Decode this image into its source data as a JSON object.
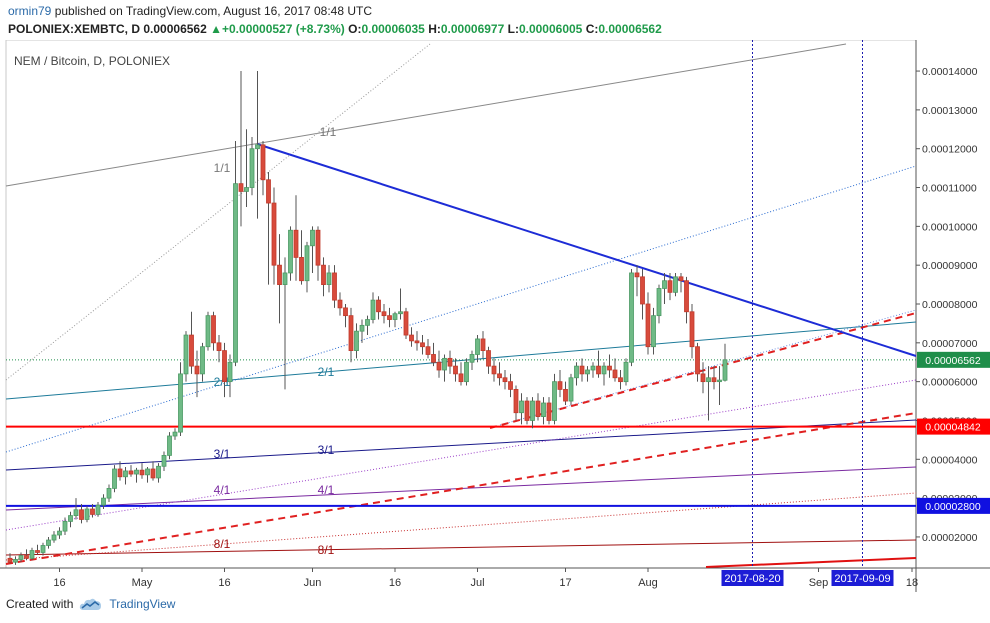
{
  "header": {
    "user": "ormin79",
    "published_text": "published on TradingView.com, August 16, 2017 08:48 UTC",
    "symbol": "POLONIEX:XEMBTC, D",
    "price": "0.00006562",
    "arrow": "▲",
    "change": "+0.00000527 (+8.73%)",
    "o_label": "O:",
    "o_value": "0.00006035",
    "h_label": "H:",
    "h_value": "0.00006977",
    "l_label": "L:",
    "l_value": "0.00006005",
    "c_label": "C:",
    "c_value": "0.00006562"
  },
  "chart_data": {
    "type": "candlestick",
    "title": "NEM / Bitcoin, D, POLONIEX",
    "ylim": [
      1.2e-05,
      0.000148
    ],
    "y_ticks": [
      "0.00014000",
      "0.00013000",
      "0.00012000",
      "0.00011000",
      "0.00010000",
      "0.00009000",
      "0.00008000",
      "0.00007000",
      "0.00006000",
      "0.00005000",
      "0.00004000",
      "0.00003000",
      "0.00002000"
    ],
    "x_ticks": [
      "16",
      "May",
      "16",
      "Jun",
      "16",
      "Jul",
      "17",
      "Aug",
      "2017-08-20",
      "Sep",
      "2017-09-09",
      "18"
    ],
    "price_labels": [
      {
        "text": "0.00006562",
        "value": 6.562e-05,
        "color": "#1f8e4a",
        "kind": "last"
      },
      {
        "text": "0.00004842",
        "value": 4.842e-05,
        "color": "#ff0000",
        "kind": "solid"
      },
      {
        "text": "0.00002800",
        "value": 2.8e-05,
        "color": "#1010e0",
        "kind": "solid"
      }
    ],
    "date_labels": [
      "2017-08-20",
      "2017-09-09"
    ],
    "fan_labels": [
      "1/1",
      "1/1",
      "2/1",
      "2/1",
      "3/1",
      "3/1",
      "4/1",
      "4/1",
      "8/1",
      "8/1"
    ],
    "candles": [
      {
        "d": "2017-04-07",
        "o": 1.45e-05,
        "h": 1.58e-05,
        "l": 1.32e-05,
        "c": 1.35e-05
      },
      {
        "d": "2017-04-08",
        "o": 1.35e-05,
        "h": 1.5e-05,
        "l": 1.28e-05,
        "c": 1.42e-05
      },
      {
        "d": "2017-04-09",
        "o": 1.42e-05,
        "h": 1.6e-05,
        "l": 1.35e-05,
        "c": 1.52e-05
      },
      {
        "d": "2017-04-10",
        "o": 1.52e-05,
        "h": 1.68e-05,
        "l": 1.4e-05,
        "c": 1.45e-05
      },
      {
        "d": "2017-04-11",
        "o": 1.45e-05,
        "h": 1.72e-05,
        "l": 1.4e-05,
        "c": 1.65e-05
      },
      {
        "d": "2017-04-12",
        "o": 1.65e-05,
        "h": 1.8e-05,
        "l": 1.55e-05,
        "c": 1.6e-05
      },
      {
        "d": "2017-04-13",
        "o": 1.6e-05,
        "h": 1.85e-05,
        "l": 1.52e-05,
        "c": 1.78e-05
      },
      {
        "d": "2017-04-14",
        "o": 1.78e-05,
        "h": 2e-05,
        "l": 1.7e-05,
        "c": 1.92e-05
      },
      {
        "d": "2017-04-15",
        "o": 1.92e-05,
        "h": 2.15e-05,
        "l": 1.85e-05,
        "c": 2.05e-05
      },
      {
        "d": "2017-04-16",
        "o": 2.05e-05,
        "h": 2.25e-05,
        "l": 1.95e-05,
        "c": 2.15e-05
      },
      {
        "d": "2017-04-17",
        "o": 2.15e-05,
        "h": 2.5e-05,
        "l": 2.05e-05,
        "c": 2.4e-05
      },
      {
        "d": "2017-04-18",
        "o": 2.4e-05,
        "h": 2.65e-05,
        "l": 2.25e-05,
        "c": 2.55e-05
      },
      {
        "d": "2017-04-19",
        "o": 2.55e-05,
        "h": 3e-05,
        "l": 2.45e-05,
        "c": 2.7e-05
      },
      {
        "d": "2017-04-20",
        "o": 2.7e-05,
        "h": 2.85e-05,
        "l": 2.35e-05,
        "c": 2.45e-05
      },
      {
        "d": "2017-04-21",
        "o": 2.45e-05,
        "h": 2.8e-05,
        "l": 2.38e-05,
        "c": 2.72e-05
      },
      {
        "d": "2017-04-22",
        "o": 2.72e-05,
        "h": 2.85e-05,
        "l": 2.5e-05,
        "c": 2.58e-05
      },
      {
        "d": "2017-04-23",
        "o": 2.58e-05,
        "h": 2.9e-05,
        "l": 2.52e-05,
        "c": 2.82e-05
      },
      {
        "d": "2017-04-24",
        "o": 2.82e-05,
        "h": 3.1e-05,
        "l": 2.72e-05,
        "c": 3e-05
      },
      {
        "d": "2017-04-25",
        "o": 3e-05,
        "h": 3.35e-05,
        "l": 2.9e-05,
        "c": 3.25e-05
      },
      {
        "d": "2017-04-26",
        "o": 3.25e-05,
        "h": 3.85e-05,
        "l": 3.15e-05,
        "c": 3.75e-05
      },
      {
        "d": "2017-04-27",
        "o": 3.75e-05,
        "h": 3.95e-05,
        "l": 3.45e-05,
        "c": 3.55e-05
      },
      {
        "d": "2017-04-28",
        "o": 3.55e-05,
        "h": 3.8e-05,
        "l": 3.35e-05,
        "c": 3.7e-05
      },
      {
        "d": "2017-04-29",
        "o": 3.7e-05,
        "h": 3.85e-05,
        "l": 3.55e-05,
        "c": 3.62e-05
      },
      {
        "d": "2017-04-30",
        "o": 3.62e-05,
        "h": 3.78e-05,
        "l": 3.4e-05,
        "c": 3.72e-05
      },
      {
        "d": "2017-05-01",
        "o": 3.72e-05,
        "h": 3.9e-05,
        "l": 3.5e-05,
        "c": 3.6e-05
      },
      {
        "d": "2017-05-02",
        "o": 3.6e-05,
        "h": 3.8e-05,
        "l": 3.4e-05,
        "c": 3.75e-05
      },
      {
        "d": "2017-05-03",
        "o": 3.75e-05,
        "h": 3.95e-05,
        "l": 3.45e-05,
        "c": 3.52e-05
      },
      {
        "d": "2017-05-04",
        "o": 3.52e-05,
        "h": 3.9e-05,
        "l": 3.4e-05,
        "c": 3.82e-05
      },
      {
        "d": "2017-05-05",
        "o": 3.82e-05,
        "h": 4.2e-05,
        "l": 3.7e-05,
        "c": 4.1e-05
      },
      {
        "d": "2017-05-06",
        "o": 4.1e-05,
        "h": 4.7e-05,
        "l": 4e-05,
        "c": 4.6e-05
      },
      {
        "d": "2017-05-07",
        "o": 4.6e-05,
        "h": 4.8e-05,
        "l": 4.5e-05,
        "c": 4.7e-05
      },
      {
        "d": "2017-05-08",
        "o": 4.7e-05,
        "h": 6.5e-05,
        "l": 4.6e-05,
        "c": 6.2e-05
      },
      {
        "d": "2017-05-09",
        "o": 6.2e-05,
        "h": 7.3e-05,
        "l": 6e-05,
        "c": 7.2e-05
      },
      {
        "d": "2017-05-10",
        "o": 7.2e-05,
        "h": 7.8e-05,
        "l": 6.2e-05,
        "c": 6.4e-05
      },
      {
        "d": "2017-05-11",
        "o": 6.4e-05,
        "h": 6.8e-05,
        "l": 5.6e-05,
        "c": 6.2e-05
      },
      {
        "d": "2017-05-12",
        "o": 6.2e-05,
        "h": 7e-05,
        "l": 6e-05,
        "c": 6.9e-05
      },
      {
        "d": "2017-05-13",
        "o": 6.9e-05,
        "h": 7.8e-05,
        "l": 6.8e-05,
        "c": 7.7e-05
      },
      {
        "d": "2017-05-14",
        "o": 7.7e-05,
        "h": 7.8e-05,
        "l": 6.8e-05,
        "c": 7e-05
      },
      {
        "d": "2017-05-15",
        "o": 7e-05,
        "h": 7.2e-05,
        "l": 6.5e-05,
        "c": 6.8e-05
      },
      {
        "d": "2017-05-16",
        "o": 6.8e-05,
        "h": 7e-05,
        "l": 5.6e-05,
        "c": 6e-05
      },
      {
        "d": "2017-05-17",
        "o": 6e-05,
        "h": 6.7e-05,
        "l": 5.6e-05,
        "c": 6.5e-05
      },
      {
        "d": "2017-05-18",
        "o": 6.5e-05,
        "h": 0.000122,
        "l": 6.4e-05,
        "c": 0.000111
      },
      {
        "d": "2017-05-19",
        "o": 0.000111,
        "h": 0.00014,
        "l": 0.0001,
        "c": 0.000109
      },
      {
        "d": "2017-05-20",
        "o": 0.000109,
        "h": 0.000125,
        "l": 0.000105,
        "c": 0.00011
      },
      {
        "d": "2017-05-21",
        "o": 0.00011,
        "h": 0.000123,
        "l": 0.000108,
        "c": 0.00012
      },
      {
        "d": "2017-05-22",
        "o": 0.00012,
        "h": 0.00014,
        "l": 0.000102,
        "c": 0.000121
      },
      {
        "d": "2017-05-23",
        "o": 0.000121,
        "h": 0.000122,
        "l": 0.000108,
        "c": 0.000112
      },
      {
        "d": "2017-05-24",
        "o": 0.000112,
        "h": 0.000114,
        "l": 8.5e-05,
        "c": 0.000106
      },
      {
        "d": "2017-05-25",
        "o": 0.000106,
        "h": 0.00011,
        "l": 8.5e-05,
        "c": 9e-05
      },
      {
        "d": "2017-05-26",
        "o": 9e-05,
        "h": 9.8e-05,
        "l": 7.5e-05,
        "c": 8.5e-05
      },
      {
        "d": "2017-05-27",
        "o": 8.5e-05,
        "h": 9.2e-05,
        "l": 5.8e-05,
        "c": 8.8e-05
      },
      {
        "d": "2017-05-28",
        "o": 8.8e-05,
        "h": 0.0001,
        "l": 8.6e-05,
        "c": 9.9e-05
      },
      {
        "d": "2017-05-29",
        "o": 9.9e-05,
        "h": 0.000108,
        "l": 8.6e-05,
        "c": 9.2e-05
      },
      {
        "d": "2017-05-30",
        "o": 9.2e-05,
        "h": 9.9e-05,
        "l": 8.5e-05,
        "c": 8.6e-05
      },
      {
        "d": "2017-05-31",
        "o": 8.6e-05,
        "h": 9.6e-05,
        "l": 8.3e-05,
        "c": 9.5e-05
      },
      {
        "d": "2017-06-01",
        "o": 9.5e-05,
        "h": 0.0001,
        "l": 8.8e-05,
        "c": 9.9e-05
      },
      {
        "d": "2017-06-02",
        "o": 9.9e-05,
        "h": 0.0001,
        "l": 8.6e-05,
        "c": 9e-05
      },
      {
        "d": "2017-06-03",
        "o": 9e-05,
        "h": 9.2e-05,
        "l": 8.2e-05,
        "c": 8.5e-05
      },
      {
        "d": "2017-06-04",
        "o": 8.5e-05,
        "h": 9e-05,
        "l": 8.3e-05,
        "c": 8.8e-05
      },
      {
        "d": "2017-06-05",
        "o": 8.8e-05,
        "h": 9e-05,
        "l": 7.9e-05,
        "c": 8.1e-05
      },
      {
        "d": "2017-06-06",
        "o": 8.1e-05,
        "h": 8.3e-05,
        "l": 7.7e-05,
        "c": 7.9e-05
      },
      {
        "d": "2017-06-07",
        "o": 7.9e-05,
        "h": 8e-05,
        "l": 7.4e-05,
        "c": 7.7e-05
      },
      {
        "d": "2017-06-08",
        "o": 7.7e-05,
        "h": 7.9e-05,
        "l": 6.5e-05,
        "c": 6.8e-05
      },
      {
        "d": "2017-06-09",
        "o": 6.8e-05,
        "h": 7.5e-05,
        "l": 6.6e-05,
        "c": 7.3e-05
      },
      {
        "d": "2017-06-10",
        "o": 7.3e-05,
        "h": 7.6e-05,
        "l": 7e-05,
        "c": 7.45e-05
      },
      {
        "d": "2017-06-11",
        "o": 7.45e-05,
        "h": 7.7e-05,
        "l": 7.2e-05,
        "c": 7.6e-05
      },
      {
        "d": "2017-06-12",
        "o": 7.6e-05,
        "h": 8.3e-05,
        "l": 7.5e-05,
        "c": 8.1e-05
      },
      {
        "d": "2017-06-13",
        "o": 8.1e-05,
        "h": 8.2e-05,
        "l": 7.6e-05,
        "c": 7.8e-05
      },
      {
        "d": "2017-06-14",
        "o": 7.8e-05,
        "h": 8e-05,
        "l": 7.5e-05,
        "c": 7.7e-05
      },
      {
        "d": "2017-06-15",
        "o": 7.7e-05,
        "h": 7.9e-05,
        "l": 7.4e-05,
        "c": 7.6e-05
      },
      {
        "d": "2017-06-16",
        "o": 7.6e-05,
        "h": 7.8e-05,
        "l": 7.4e-05,
        "c": 7.75e-05
      },
      {
        "d": "2017-06-17",
        "o": 7.75e-05,
        "h": 8.4e-05,
        "l": 7.6e-05,
        "c": 7.8e-05
      },
      {
        "d": "2017-06-18",
        "o": 7.8e-05,
        "h": 7.9e-05,
        "l": 7.1e-05,
        "c": 7.2e-05
      },
      {
        "d": "2017-06-19",
        "o": 7.2e-05,
        "h": 7.4e-05,
        "l": 6.9e-05,
        "c": 7.05e-05
      },
      {
        "d": "2017-06-20",
        "o": 7.05e-05,
        "h": 7.3e-05,
        "l": 6.8e-05,
        "c": 7e-05
      },
      {
        "d": "2017-06-21",
        "o": 7e-05,
        "h": 7.2e-05,
        "l": 6.7e-05,
        "c": 6.9e-05
      },
      {
        "d": "2017-06-22",
        "o": 6.9e-05,
        "h": 7.1e-05,
        "l": 6.6e-05,
        "c": 6.7e-05
      },
      {
        "d": "2017-06-23",
        "o": 6.7e-05,
        "h": 7e-05,
        "l": 6.4e-05,
        "c": 6.5e-05
      },
      {
        "d": "2017-06-24",
        "o": 6.5e-05,
        "h": 6.8e-05,
        "l": 6.1e-05,
        "c": 6.3e-05
      },
      {
        "d": "2017-06-25",
        "o": 6.3e-05,
        "h": 6.7e-05,
        "l": 6e-05,
        "c": 6.6e-05
      },
      {
        "d": "2017-06-26",
        "o": 6.6e-05,
        "h": 6.8e-05,
        "l": 6.2e-05,
        "c": 6.4e-05
      },
      {
        "d": "2017-06-27",
        "o": 6.4e-05,
        "h": 6.6e-05,
        "l": 6e-05,
        "c": 6.2e-05
      },
      {
        "d": "2017-06-28",
        "o": 6.2e-05,
        "h": 6.5e-05,
        "l": 5.9e-05,
        "c": 6e-05
      },
      {
        "d": "2017-06-29",
        "o": 6e-05,
        "h": 6.6e-05,
        "l": 5.9e-05,
        "c": 6.5e-05
      },
      {
        "d": "2017-06-30",
        "o": 6.5e-05,
        "h": 6.8e-05,
        "l": 6.3e-05,
        "c": 6.7e-05
      },
      {
        "d": "2017-07-01",
        "o": 6.7e-05,
        "h": 7.2e-05,
        "l": 6.5e-05,
        "c": 7.1e-05
      },
      {
        "d": "2017-07-02",
        "o": 7.1e-05,
        "h": 7.3e-05,
        "l": 6.6e-05,
        "c": 6.8e-05
      },
      {
        "d": "2017-07-03",
        "o": 6.8e-05,
        "h": 6.9e-05,
        "l": 6.2e-05,
        "c": 6.4e-05
      },
      {
        "d": "2017-07-04",
        "o": 6.4e-05,
        "h": 6.6e-05,
        "l": 6e-05,
        "c": 6.2e-05
      },
      {
        "d": "2017-07-05",
        "o": 6.2e-05,
        "h": 6.5e-05,
        "l": 5.9e-05,
        "c": 6.1e-05
      },
      {
        "d": "2017-07-06",
        "o": 6.1e-05,
        "h": 6.3e-05,
        "l": 5.8e-05,
        "c": 6e-05
      },
      {
        "d": "2017-07-07",
        "o": 6e-05,
        "h": 6.2e-05,
        "l": 5.6e-05,
        "c": 5.8e-05
      },
      {
        "d": "2017-07-08",
        "o": 5.8e-05,
        "h": 5.9e-05,
        "l": 5e-05,
        "c": 5.2e-05
      },
      {
        "d": "2017-07-09",
        "o": 5.2e-05,
        "h": 5.7e-05,
        "l": 4.9e-05,
        "c": 5.5e-05
      },
      {
        "d": "2017-07-10",
        "o": 5.5e-05,
        "h": 5.6e-05,
        "l": 4.9e-05,
        "c": 5e-05
      },
      {
        "d": "2017-07-11",
        "o": 5e-05,
        "h": 5.6e-05,
        "l": 4.8e-05,
        "c": 5.5e-05
      },
      {
        "d": "2017-07-12",
        "o": 5.5e-05,
        "h": 5.7e-05,
        "l": 5e-05,
        "c": 5.1e-05
      },
      {
        "d": "2017-07-13",
        "o": 5.1e-05,
        "h": 5.6e-05,
        "l": 4.9e-05,
        "c": 5.45e-05
      },
      {
        "d": "2017-07-14",
        "o": 5.45e-05,
        "h": 5.6e-05,
        "l": 4.9e-05,
        "c": 5e-05
      },
      {
        "d": "2017-07-15",
        "o": 5e-05,
        "h": 6.2e-05,
        "l": 4.9e-05,
        "c": 6e-05
      },
      {
        "d": "2017-07-16",
        "o": 6e-05,
        "h": 6.3e-05,
        "l": 5.6e-05,
        "c": 5.8e-05
      },
      {
        "d": "2017-07-17",
        "o": 5.8e-05,
        "h": 6e-05,
        "l": 5.4e-05,
        "c": 5.5e-05
      },
      {
        "d": "2017-07-18",
        "o": 5.5e-05,
        "h": 6.2e-05,
        "l": 5.4e-05,
        "c": 6.1e-05
      },
      {
        "d": "2017-07-19",
        "o": 6.1e-05,
        "h": 6.5e-05,
        "l": 5.9e-05,
        "c": 6.4e-05
      },
      {
        "d": "2017-07-20",
        "o": 6.4e-05,
        "h": 6.6e-05,
        "l": 6e-05,
        "c": 6.2e-05
      },
      {
        "d": "2017-07-21",
        "o": 6.2e-05,
        "h": 6.4e-05,
        "l": 6e-05,
        "c": 6.3e-05
      },
      {
        "d": "2017-07-22",
        "o": 6.3e-05,
        "h": 6.5e-05,
        "l": 6.1e-05,
        "c": 6.4e-05
      },
      {
        "d": "2017-07-23",
        "o": 6.4e-05,
        "h": 6.8e-05,
        "l": 6.1e-05,
        "c": 6.2e-05
      },
      {
        "d": "2017-07-24",
        "o": 6.2e-05,
        "h": 6.5e-05,
        "l": 5.9e-05,
        "c": 6.4e-05
      },
      {
        "d": "2017-07-25",
        "o": 6.4e-05,
        "h": 6.7e-05,
        "l": 6.1e-05,
        "c": 6.3e-05
      },
      {
        "d": "2017-07-26",
        "o": 6.3e-05,
        "h": 6.6e-05,
        "l": 6e-05,
        "c": 6.1e-05
      },
      {
        "d": "2017-07-27",
        "o": 6.1e-05,
        "h": 6.3e-05,
        "l": 5.8e-05,
        "c": 6e-05
      },
      {
        "d": "2017-07-28",
        "o": 6e-05,
        "h": 6.6e-05,
        "l": 5.9e-05,
        "c": 6.5e-05
      },
      {
        "d": "2017-07-29",
        "o": 6.5e-05,
        "h": 8.9e-05,
        "l": 6.4e-05,
        "c": 8.8e-05
      },
      {
        "d": "2017-07-30",
        "o": 8.8e-05,
        "h": 9e-05,
        "l": 8.2e-05,
        "c": 8.7e-05
      },
      {
        "d": "2017-07-31",
        "o": 8.7e-05,
        "h": 8.9e-05,
        "l": 7.6e-05,
        "c": 8e-05
      },
      {
        "d": "2017-08-01",
        "o": 8e-05,
        "h": 8.3e-05,
        "l": 6.7e-05,
        "c": 6.9e-05
      },
      {
        "d": "2017-08-02",
        "o": 6.9e-05,
        "h": 7.9e-05,
        "l": 6.7e-05,
        "c": 7.7e-05
      },
      {
        "d": "2017-08-03",
        "o": 7.7e-05,
        "h": 8.5e-05,
        "l": 7.5e-05,
        "c": 8.4e-05
      },
      {
        "d": "2017-08-04",
        "o": 8.4e-05,
        "h": 8.8e-05,
        "l": 8e-05,
        "c": 8.6e-05
      },
      {
        "d": "2017-08-05",
        "o": 8.6e-05,
        "h": 8.8e-05,
        "l": 8.1e-05,
        "c": 8.3e-05
      },
      {
        "d": "2017-08-06",
        "o": 8.3e-05,
        "h": 8.8e-05,
        "l": 8.2e-05,
        "c": 8.7e-05
      },
      {
        "d": "2017-08-07",
        "o": 8.7e-05,
        "h": 8.8e-05,
        "l": 8.3e-05,
        "c": 8.6e-05
      },
      {
        "d": "2017-08-08",
        "o": 8.6e-05,
        "h": 8.7e-05,
        "l": 7.5e-05,
        "c": 7.8e-05
      },
      {
        "d": "2017-08-09",
        "o": 7.8e-05,
        "h": 8e-05,
        "l": 6.6e-05,
        "c": 6.9e-05
      },
      {
        "d": "2017-08-10",
        "o": 6.9e-05,
        "h": 7e-05,
        "l": 6e-05,
        "c": 6.2e-05
      },
      {
        "d": "2017-08-11",
        "o": 6.2e-05,
        "h": 6.5e-05,
        "l": 5.7e-05,
        "c": 6e-05
      },
      {
        "d": "2017-08-12",
        "o": 6e-05,
        "h": 6.4e-05,
        "l": 5e-05,
        "c": 6.1e-05
      },
      {
        "d": "2017-08-13",
        "o": 6.1e-05,
        "h": 6.4e-05,
        "l": 5.8e-05,
        "c": 6e-05
      },
      {
        "d": "2017-08-14",
        "o": 6e-05,
        "h": 6.4e-05,
        "l": 5.4e-05,
        "c": 6.04e-05
      },
      {
        "d": "2017-08-15",
        "o": 6.035e-05,
        "h": 6.977e-05,
        "l": 6.005e-05,
        "c": 6.562e-05
      }
    ]
  },
  "footer": {
    "created_with": "Created with",
    "brand": "TradingView"
  }
}
